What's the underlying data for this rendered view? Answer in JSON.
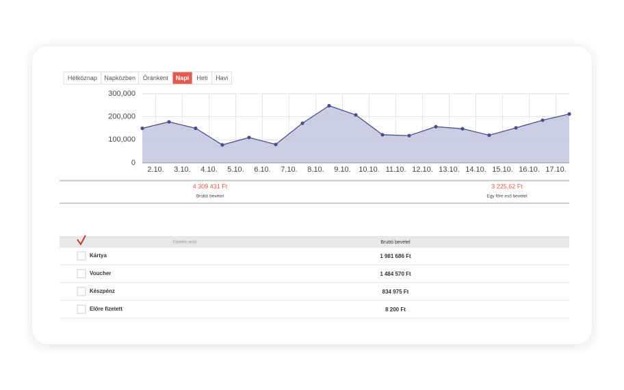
{
  "tabs": [
    "Hétköznap",
    "Napközben",
    "Óránként",
    "Napi",
    "Heti",
    "Havi"
  ],
  "active_tab": "Napi",
  "chart_data": {
    "type": "area",
    "x": [
      1.5,
      2.5,
      3.5,
      4.5,
      5.5,
      6.5,
      7.5,
      8.5,
      9.5,
      10.5,
      11.5,
      12.5,
      13.5,
      14.5,
      15.5,
      16.5,
      17.5
    ],
    "values": [
      150000,
      178000,
      150000,
      78000,
      110000,
      80000,
      172000,
      248000,
      208000,
      122000,
      118000,
      157000,
      148000,
      120000,
      152000,
      185000,
      212000
    ],
    "color": "#4a4f8c",
    "fill": "#c5c8e0",
    "xlim": [
      1.5,
      17.5
    ],
    "xticks": [
      {
        "value": 2,
        "label": "2.10."
      },
      {
        "value": 3,
        "label": "3.10."
      },
      {
        "value": 4,
        "label": "4.10."
      },
      {
        "value": 5,
        "label": "5.10."
      },
      {
        "value": 6,
        "label": "6.10."
      },
      {
        "value": 7,
        "label": "7.10."
      },
      {
        "value": 8,
        "label": "8.10."
      },
      {
        "value": 9,
        "label": "9.10."
      },
      {
        "value": 10,
        "label": "10.10."
      },
      {
        "value": 11,
        "label": "11.10."
      },
      {
        "value": 12,
        "label": "12.10."
      },
      {
        "value": 13,
        "label": "13.10."
      },
      {
        "value": 14,
        "label": "14.10."
      },
      {
        "value": 15,
        "label": "15.10."
      },
      {
        "value": 16,
        "label": "16.10."
      },
      {
        "value": 17,
        "label": "17.10."
      }
    ],
    "ylim": [
      0,
      300000
    ],
    "yticks": [
      0,
      {
        "value": 100000,
        "label": "100,000"
      },
      {
        "value": 200000,
        "label": "200,000"
      },
      {
        "value": 300000,
        "label": "300,000"
      }
    ],
    "grid": true
  },
  "summary": [
    {
      "value": "4 309 431 Ft",
      "label": "Bruttó bevétel"
    },
    {
      "value": "3 225,62 Ft",
      "label": "Egy főre eső bevétel"
    }
  ],
  "table": {
    "header": [
      "Fizetési mód",
      "Bruttó bevétel"
    ],
    "rows": [
      [
        "Kártya",
        "1 981 686 Ft"
      ],
      [
        "Voucher",
        "1 484 570 Ft"
      ],
      [
        "Készpénz",
        "834 975 Ft"
      ],
      [
        "Előre fizetett",
        "8 200 Ft"
      ]
    ]
  }
}
